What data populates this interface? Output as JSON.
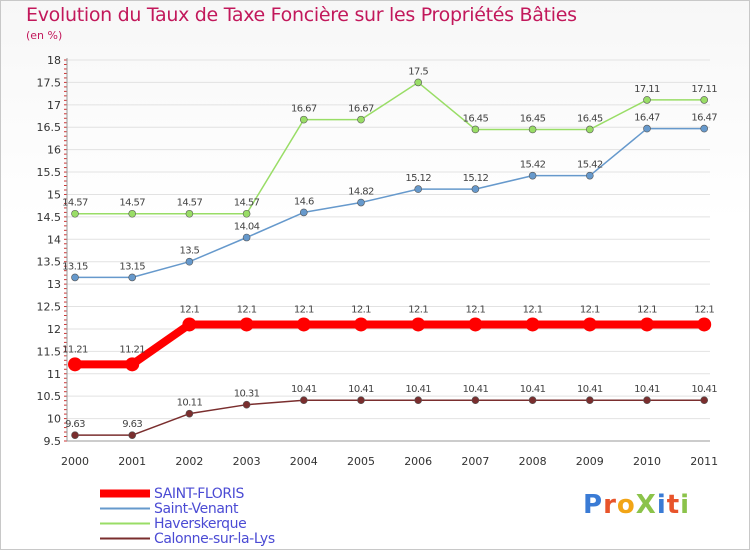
{
  "title": "Evolution du Taux de Taxe Foncière sur les Propriétés Bâties",
  "unit_label": "(en %)",
  "logo": "ProXiti",
  "chart_data": {
    "type": "line",
    "title": "Evolution du Taux de Taxe Foncière sur les Propriétés Bâties",
    "ylabel": "(en %)",
    "xlabel": "",
    "x": [
      "2000",
      "2001",
      "2002",
      "2003",
      "2004",
      "2005",
      "2006",
      "2007",
      "2008",
      "2009",
      "2010",
      "2011"
    ],
    "ylim": [
      9.5,
      18
    ],
    "yticks": [
      "9.5",
      "10",
      "10.5",
      "11",
      "11.5",
      "12",
      "12.5",
      "13",
      "13.5",
      "14",
      "14.5",
      "15",
      "15.5",
      "16",
      "16.5",
      "17",
      "17.5",
      "18"
    ],
    "grid": true,
    "series": [
      {
        "name": "SAINT-FLORIS",
        "color": "#ff0000",
        "values": [
          11.21,
          11.21,
          12.1,
          12.1,
          12.1,
          12.1,
          12.1,
          12.1,
          12.1,
          12.1,
          12.1,
          12.1
        ],
        "labels": [
          "11.21",
          "11.21",
          "12.1",
          "12.1",
          "12.1",
          "12.1",
          "12.1",
          "12.1",
          "12.1",
          "12.1",
          "12.1",
          "12.1"
        ]
      },
      {
        "name": "Saint-Venant",
        "color": "#6699cc",
        "values": [
          13.15,
          13.15,
          13.5,
          14.04,
          14.6,
          14.82,
          15.12,
          15.12,
          15.42,
          15.42,
          16.47,
          16.47
        ],
        "labels": [
          "13.15",
          "13.15",
          "13.5",
          "14.04",
          "14.6",
          "14.82",
          "15.12",
          "15.12",
          "15.42",
          "15.42",
          "16.47",
          "16.47"
        ]
      },
      {
        "name": "Haverskerque",
        "color": "#99dd66",
        "values": [
          14.57,
          14.57,
          14.57,
          14.57,
          16.67,
          16.67,
          17.5,
          16.45,
          16.45,
          16.45,
          17.11,
          17.11
        ],
        "labels": [
          "14.57",
          "14.57",
          "14.57",
          "14.57",
          "16.67",
          "16.67",
          "17.5",
          "16.45",
          "16.45",
          "16.45",
          "17.11",
          "17.11"
        ]
      },
      {
        "name": "Calonne-sur-la-Lys",
        "color": "#7a2e2e",
        "values": [
          9.63,
          9.63,
          10.11,
          10.31,
          10.41,
          10.41,
          10.41,
          10.41,
          10.41,
          10.41,
          10.41,
          10.41
        ],
        "labels": [
          "9.63",
          "9.63",
          "10.11",
          "10.31",
          "10.41",
          "10.41",
          "10.41",
          "10.41",
          "10.41",
          "10.41",
          "10.41",
          "10.41"
        ]
      }
    ],
    "legend_position": "bottom-left"
  }
}
